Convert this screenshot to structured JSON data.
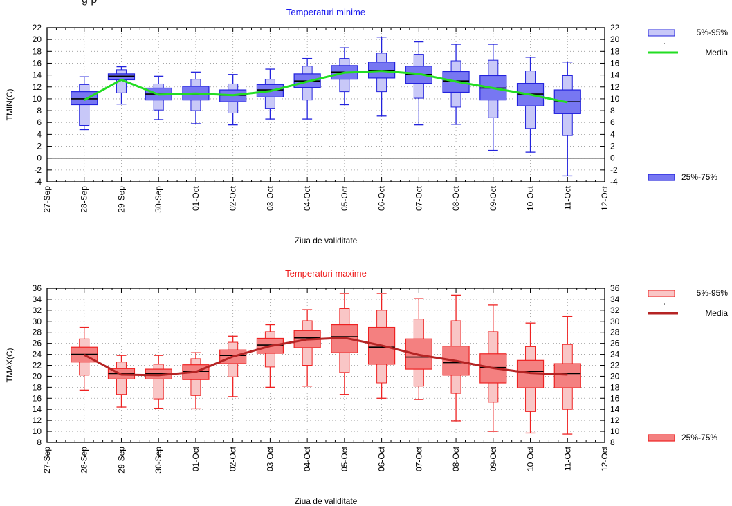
{
  "header_fragment": "g     p",
  "chart_data": [
    {
      "type": "box",
      "title": "Temperaturi minime",
      "title_color": "#1a1aee",
      "ylabel": "TMIN(C)",
      "xlabel": "Ziua de validitate",
      "ylim": [
        -4,
        22
      ],
      "yticks": [
        -4,
        -2,
        0,
        2,
        4,
        6,
        8,
        10,
        12,
        14,
        16,
        18,
        20,
        22
      ],
      "x_tick_labels": [
        "27-Sep",
        "28-Sep",
        "29-Sep",
        "30-Sep",
        "01-Oct",
        "02-Oct",
        "03-Oct",
        "04-Oct",
        "05-Oct",
        "06-Oct",
        "07-Oct",
        "08-Oct",
        "09-Oct",
        "10-Oct",
        "11-Oct",
        "12-Oct"
      ],
      "grid": true,
      "colors": {
        "outline": "#2222dd",
        "iqr_fill": "#7777f2",
        "pct_fill": "#c8c8f8",
        "line": "#22dd22",
        "median": "#000000"
      },
      "legend": {
        "pct_label": "5%-95%",
        "mean_label": "Media",
        "iqr_label": "25%-75%"
      },
      "series": [
        {
          "x": "28-Sep",
          "p5": 4.8,
          "p25": 9.0,
          "median": 10.0,
          "p75": 11.2,
          "p95": 13.7,
          "pbox_low": 5.5,
          "pbox_high": 12.4,
          "mean": 9.8
        },
        {
          "x": "29-Sep",
          "p5": 9.1,
          "p25": 13.2,
          "median": 13.8,
          "p75": 14.2,
          "p95": 15.4,
          "pbox_low": 11.0,
          "pbox_high": 14.9,
          "mean": 13.2
        },
        {
          "x": "30-Sep",
          "p5": 6.5,
          "p25": 9.8,
          "median": 10.8,
          "p75": 11.8,
          "p95": 13.8,
          "pbox_low": 8.1,
          "pbox_high": 12.5,
          "mean": 10.7
        },
        {
          "x": "01-Oct",
          "p5": 5.8,
          "p25": 9.8,
          "median": 10.8,
          "p75": 12.1,
          "p95": 14.5,
          "pbox_low": 8.0,
          "pbox_high": 13.3,
          "mean": 10.9
        },
        {
          "x": "02-Oct",
          "p5": 5.6,
          "p25": 9.5,
          "median": 10.6,
          "p75": 11.5,
          "p95": 14.1,
          "pbox_low": 7.6,
          "pbox_high": 12.5,
          "mean": 10.6
        },
        {
          "x": "03-Oct",
          "p5": 6.6,
          "p25": 10.3,
          "median": 11.5,
          "p75": 12.4,
          "p95": 15.0,
          "pbox_low": 8.4,
          "pbox_high": 13.3,
          "mean": 11.3
        },
        {
          "x": "04-Oct",
          "p5": 6.6,
          "p25": 11.9,
          "median": 13.0,
          "p75": 14.2,
          "p95": 16.8,
          "pbox_low": 9.8,
          "pbox_high": 15.5,
          "mean": 12.9
        },
        {
          "x": "05-Oct",
          "p5": 9.0,
          "p25": 13.3,
          "median": 14.5,
          "p75": 15.6,
          "p95": 18.6,
          "pbox_low": 11.2,
          "pbox_high": 16.8,
          "mean": 14.4
        },
        {
          "x": "06-Oct",
          "p5": 7.1,
          "p25": 13.5,
          "median": 14.8,
          "p75": 16.2,
          "p95": 20.4,
          "pbox_low": 11.2,
          "pbox_high": 17.7,
          "mean": 14.7
        },
        {
          "x": "07-Oct",
          "p5": 5.6,
          "p25": 12.6,
          "median": 14.1,
          "p75": 15.5,
          "p95": 19.6,
          "pbox_low": 10.1,
          "pbox_high": 17.5,
          "mean": 14.2
        },
        {
          "x": "08-Oct",
          "p5": 5.7,
          "p25": 11.1,
          "median": 13.0,
          "p75": 14.6,
          "p95": 19.2,
          "pbox_low": 8.6,
          "pbox_high": 16.4,
          "mean": 12.9
        },
        {
          "x": "09-Oct",
          "p5": 1.3,
          "p25": 9.8,
          "median": 11.8,
          "p75": 13.9,
          "p95": 19.2,
          "pbox_low": 6.8,
          "pbox_high": 16.5,
          "mean": 11.8
        },
        {
          "x": "10-Oct",
          "p5": 1.0,
          "p25": 8.8,
          "median": 10.8,
          "p75": 12.6,
          "p95": 17.0,
          "pbox_low": 5.0,
          "pbox_high": 14.7,
          "mean": 10.7
        },
        {
          "x": "11-Oct",
          "p5": -3.0,
          "p25": 7.5,
          "median": 9.5,
          "p75": 11.5,
          "p95": 16.2,
          "pbox_low": 3.8,
          "pbox_high": 13.9,
          "mean": 9.4
        }
      ]
    },
    {
      "type": "box",
      "title": "Temperaturi maxime",
      "title_color": "#ee1a1a",
      "ylabel": "TMAX(C)",
      "xlabel": "Ziua de validitate",
      "ylim": [
        8,
        36
      ],
      "yticks": [
        8,
        10,
        12,
        14,
        16,
        18,
        20,
        22,
        24,
        26,
        28,
        30,
        32,
        34,
        36
      ],
      "x_tick_labels": [
        "27-Sep",
        "28-Sep",
        "29-Sep",
        "30-Sep",
        "01-Oct",
        "02-Oct",
        "03-Oct",
        "04-Oct",
        "05-Oct",
        "06-Oct",
        "07-Oct",
        "08-Oct",
        "09-Oct",
        "10-Oct",
        "11-Oct",
        "12-Oct"
      ],
      "grid": true,
      "colors": {
        "outline": "#ee2222",
        "iqr_fill": "#f48080",
        "pct_fill": "#f9c6c6",
        "line": "#b52424",
        "median": "#000000"
      },
      "legend": {
        "pct_label": "5%-95%",
        "mean_label": "Media",
        "iqr_label": "25%-75%"
      },
      "series": [
        {
          "x": "28-Sep",
          "p5": 17.5,
          "p25": 22.6,
          "median": 24.0,
          "p75": 25.3,
          "p95": 28.9,
          "pbox_low": 20.2,
          "pbox_high": 26.8,
          "mean": 23.9
        },
        {
          "x": "29-Sep",
          "p5": 14.4,
          "p25": 19.5,
          "median": 20.5,
          "p75": 21.4,
          "p95": 23.8,
          "pbox_low": 16.7,
          "pbox_high": 22.6,
          "mean": 20.3
        },
        {
          "x": "30-Sep",
          "p5": 14.2,
          "p25": 19.5,
          "median": 20.5,
          "p75": 21.3,
          "p95": 23.8,
          "pbox_low": 15.9,
          "pbox_high": 22.2,
          "mean": 20.2
        },
        {
          "x": "01-Oct",
          "p5": 14.1,
          "p25": 19.4,
          "median": 20.9,
          "p75": 22.1,
          "p95": 24.3,
          "pbox_low": 16.5,
          "pbox_high": 23.2,
          "mean": 20.8
        },
        {
          "x": "02-Oct",
          "p5": 16.3,
          "p25": 22.3,
          "median": 23.8,
          "p75": 24.8,
          "p95": 27.3,
          "pbox_low": 19.9,
          "pbox_high": 26.2,
          "mean": 23.6
        },
        {
          "x": "03-Oct",
          "p5": 18.0,
          "p25": 24.2,
          "median": 25.7,
          "p75": 26.9,
          "p95": 29.4,
          "pbox_low": 21.7,
          "pbox_high": 28.1,
          "mean": 25.5
        },
        {
          "x": "04-Oct",
          "p5": 18.2,
          "p25": 25.2,
          "median": 27.0,
          "p75": 28.3,
          "p95": 32.1,
          "pbox_low": 22.0,
          "pbox_high": 30.1,
          "mean": 26.7
        },
        {
          "x": "05-Oct",
          "p5": 16.7,
          "p25": 24.3,
          "median": 27.2,
          "p75": 29.4,
          "p95": 35.0,
          "pbox_low": 20.7,
          "pbox_high": 32.3,
          "mean": 27.0
        },
        {
          "x": "06-Oct",
          "p5": 16.0,
          "p25": 22.2,
          "median": 25.3,
          "p75": 28.9,
          "p95": 35.0,
          "pbox_low": 18.8,
          "pbox_high": 32.0,
          "mean": 25.6
        },
        {
          "x": "07-Oct",
          "p5": 15.8,
          "p25": 21.3,
          "median": 23.5,
          "p75": 26.8,
          "p95": 34.1,
          "pbox_low": 18.2,
          "pbox_high": 30.4,
          "mean": 23.9
        },
        {
          "x": "08-Oct",
          "p5": 11.9,
          "p25": 20.2,
          "median": 22.5,
          "p75": 25.5,
          "p95": 34.7,
          "pbox_low": 16.9,
          "pbox_high": 30.1,
          "mean": 22.8
        },
        {
          "x": "09-Oct",
          "p5": 10.0,
          "p25": 18.8,
          "median": 21.6,
          "p75": 24.1,
          "p95": 33.0,
          "pbox_low": 15.3,
          "pbox_high": 28.1,
          "mean": 21.5
        },
        {
          "x": "10-Oct",
          "p5": 9.7,
          "p25": 17.9,
          "median": 20.9,
          "p75": 22.9,
          "p95": 29.7,
          "pbox_low": 13.6,
          "pbox_high": 25.4,
          "mean": 20.6
        },
        {
          "x": "11-Oct",
          "p5": 9.5,
          "p25": 17.9,
          "median": 20.5,
          "p75": 22.3,
          "p95": 30.9,
          "pbox_low": 14.0,
          "pbox_high": 25.8,
          "mean": 20.3
        }
      ]
    }
  ]
}
